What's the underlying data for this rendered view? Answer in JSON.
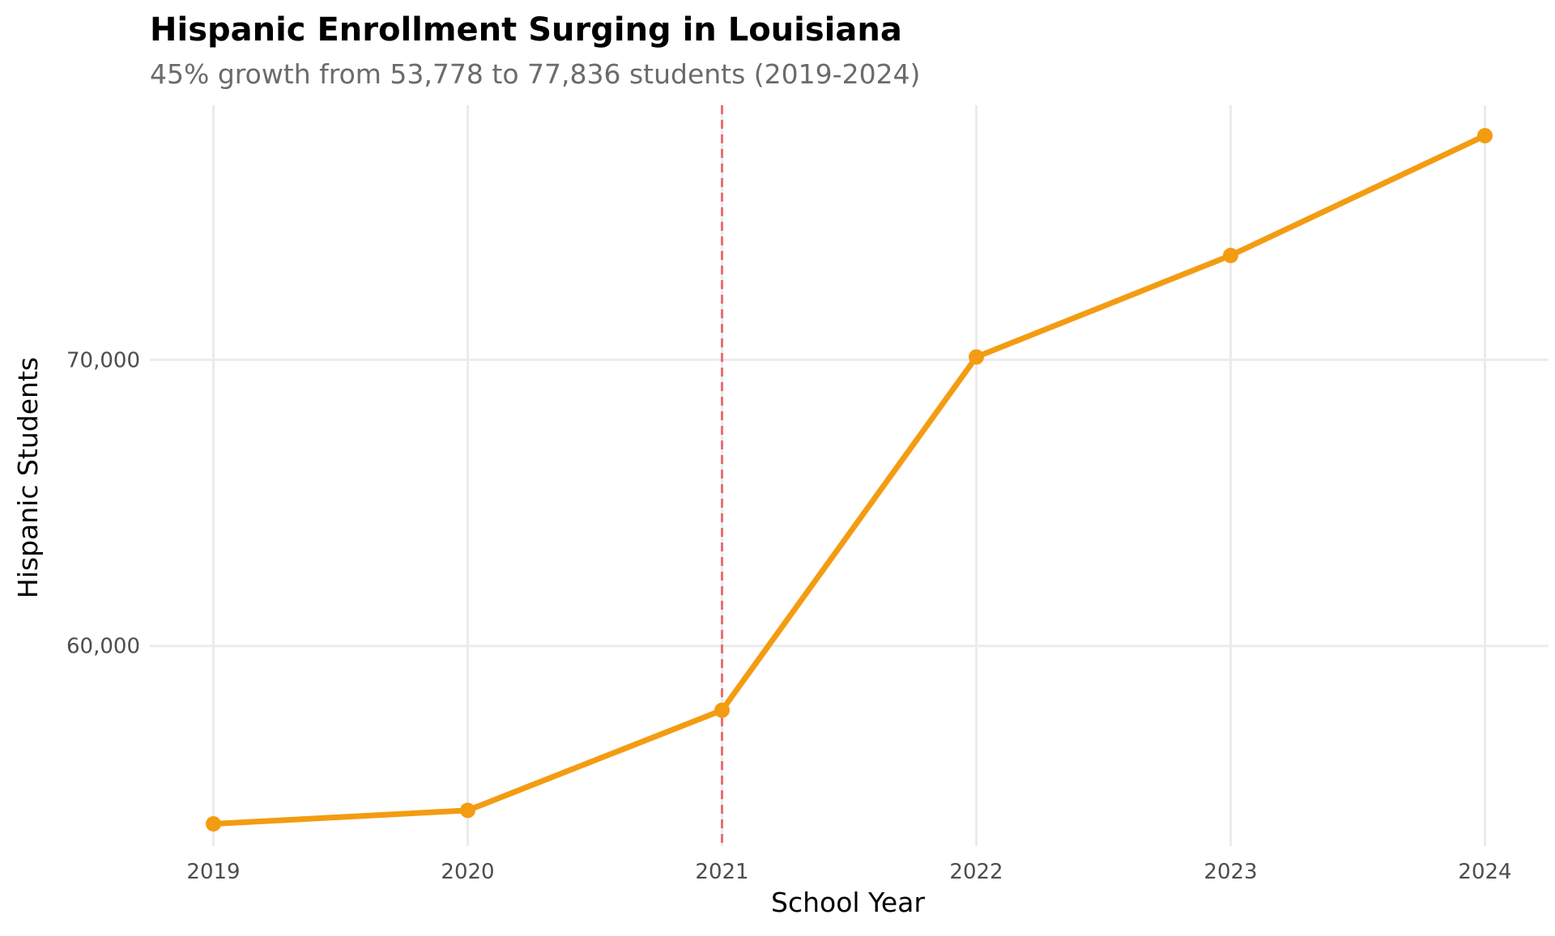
{
  "chart_data": {
    "type": "line",
    "title": "Hispanic Enrollment Surging in Louisiana",
    "subtitle": "45% growth from 53,778 to 77,836 students (2019-2024)",
    "xlabel": "School Year",
    "ylabel": "Hispanic Students",
    "x": [
      2019,
      2020,
      2021,
      2022,
      2023,
      2024
    ],
    "x_tick_labels": [
      "2019",
      "2020",
      "2021",
      "2022",
      "2023",
      "2024"
    ],
    "series": [
      {
        "name": "Hispanic Students",
        "values": [
          53778,
          54250,
          57750,
          70100,
          73650,
          77836
        ],
        "color": "#F39C12"
      }
    ],
    "y_ticks": [
      60000,
      70000
    ],
    "y_tick_labels": [
      "60,000",
      "70,000"
    ],
    "xlim": [
      2018.75,
      2024.25
    ],
    "ylim": [
      53000,
      78900
    ],
    "reference_line": {
      "x": 2021,
      "style": "dashed",
      "color": "#E8636A"
    },
    "grid": true,
    "legend": "none"
  }
}
